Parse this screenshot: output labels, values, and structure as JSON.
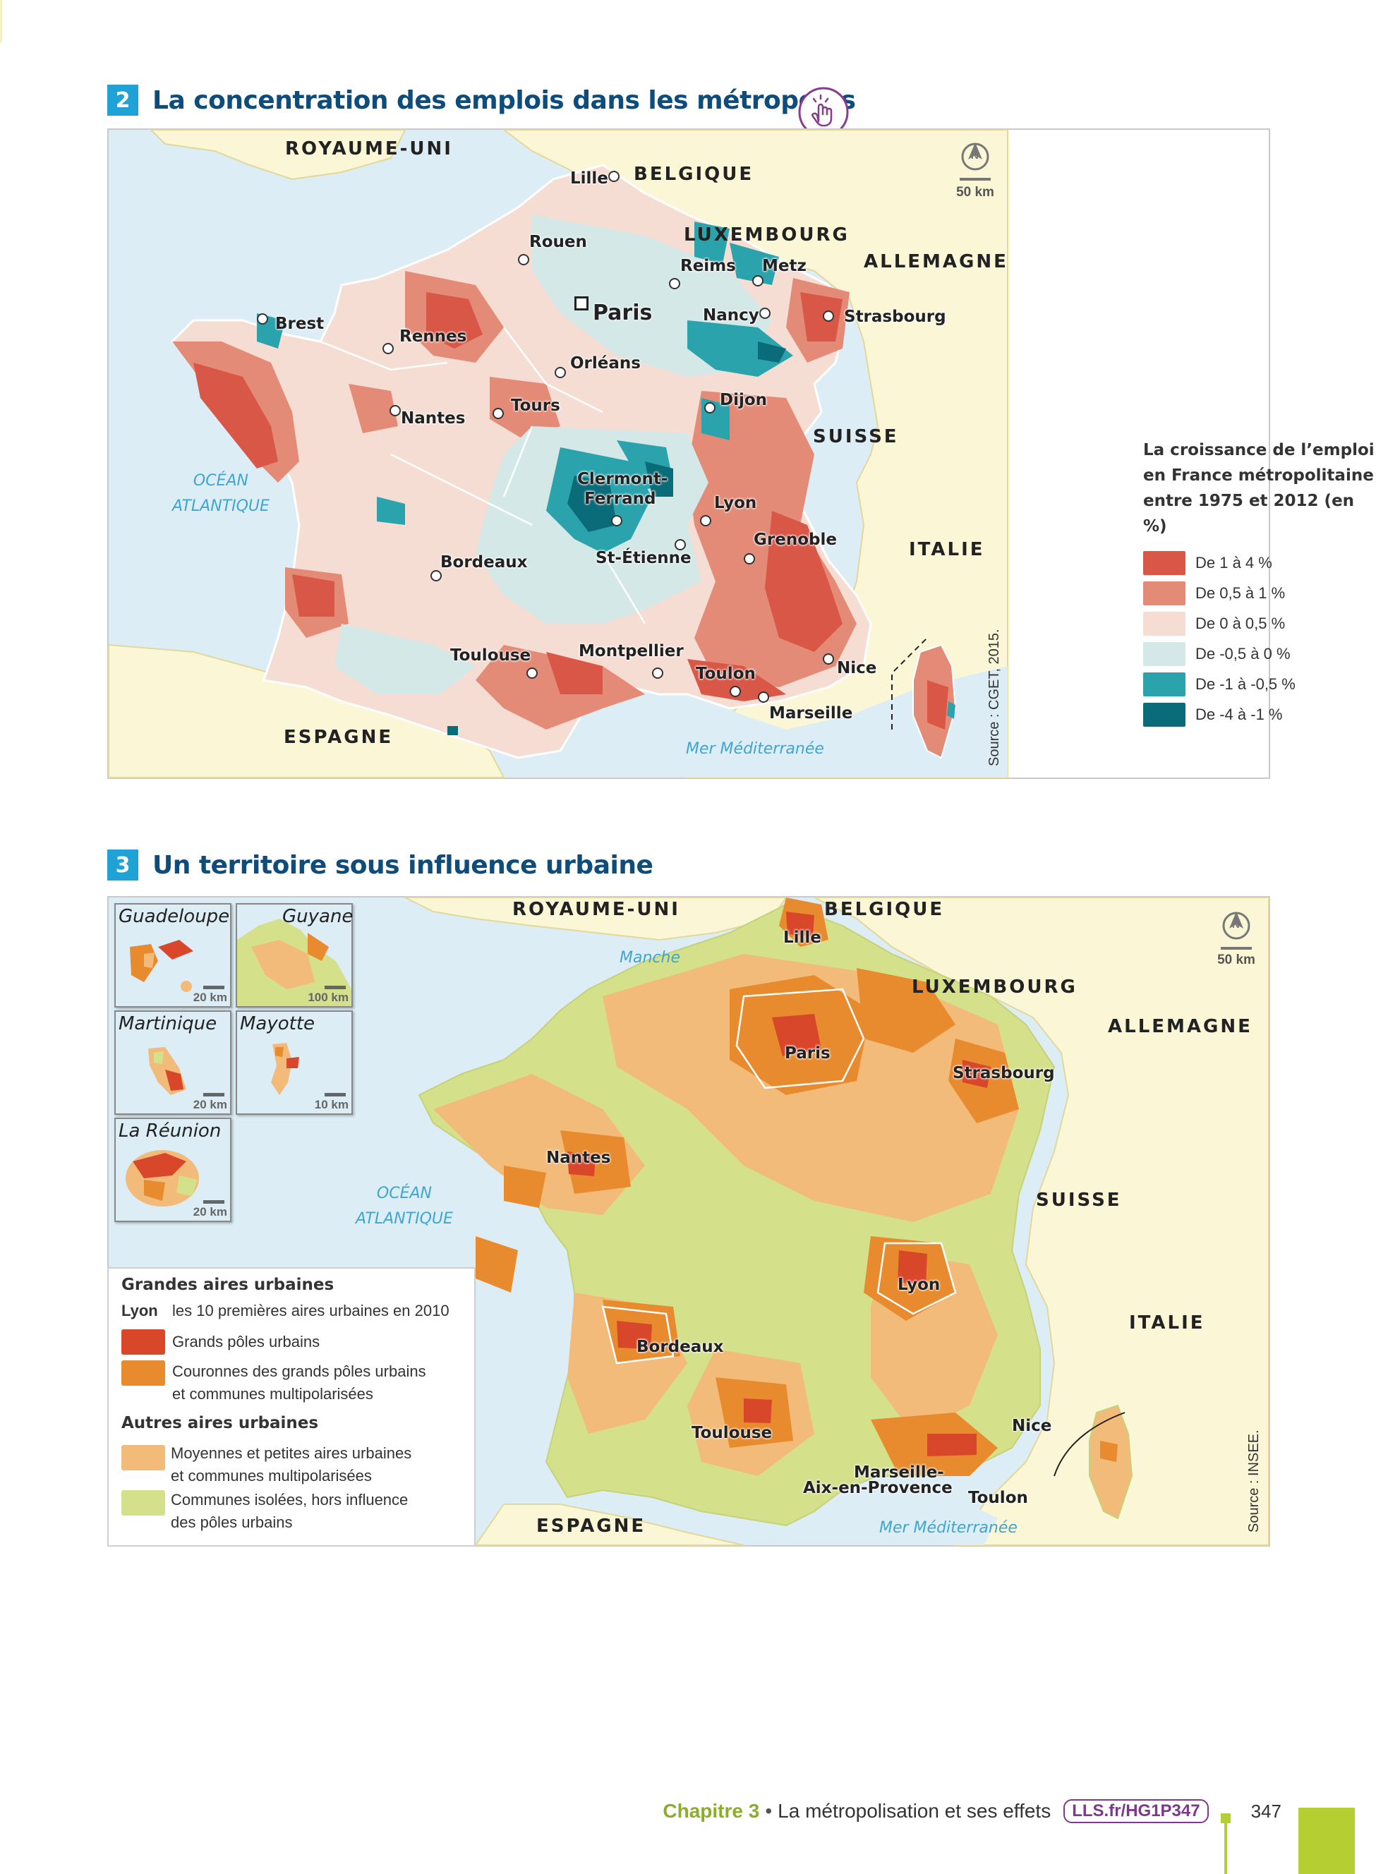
{
  "map1": {
    "number": "2",
    "title": "La concentration des emplois dans les métropoles",
    "countries": [
      "ROYAUME-UNI",
      "BELGIQUE",
      "LUXEMBOURG",
      "ALLEMAGNE",
      "SUISSE",
      "ITALIE",
      "ESPAGNE"
    ],
    "seas": {
      "ocean_line1": "OCÉAN",
      "ocean_line2": "ATLANTIQUE",
      "med": "Mer Méditerranée"
    },
    "cities": [
      "Lille",
      "Rouen",
      "Reims",
      "Metz",
      "Paris",
      "Nancy",
      "Strasbourg",
      "Brest",
      "Rennes",
      "Orléans",
      "Tours",
      "Nantes",
      "Dijon",
      "Clermont-",
      "Ferrand",
      "Lyon",
      "Grenoble",
      "Bordeaux",
      "St-Étienne",
      "Toulouse",
      "Montpellier",
      "Toulon",
      "Nice",
      "Marseille"
    ],
    "scale": "50 km",
    "north": "N",
    "source": "Source : CGET, 2015.",
    "legend": {
      "title_line1": "La croissance de l’emploi",
      "title_line2": "en France métropolitaine",
      "title_line3": "entre 1975 et 2012 (en %)",
      "items": [
        {
          "label": "De 1 à 4 %",
          "color": "#d95746"
        },
        {
          "label": "De 0,5 à 1 %",
          "color": "#e48b77"
        },
        {
          "label": "De 0 à 0,5 %",
          "color": "#f6ddd3"
        },
        {
          "label": "De -0,5 à 0 %",
          "color": "#d3e8e7"
        },
        {
          "label": "De -1 à -0,5 %",
          "color": "#2ba3ad"
        },
        {
          "label": "De -4 à -1 %",
          "color": "#0b6c79"
        }
      ]
    }
  },
  "map2": {
    "number": "3",
    "title": "Un territoire sous influence urbaine",
    "countries": [
      "ROYAUME-UNI",
      "BELGIQUE",
      "LUXEMBOURG",
      "ALLEMAGNE",
      "SUISSE",
      "ITALIE",
      "ESPAGNE"
    ],
    "seas": {
      "manche": "Manche",
      "ocean_line1": "OCÉAN",
      "ocean_line2": "ATLANTIQUE",
      "med": "Mer Méditerranée"
    },
    "cities": [
      "Lille",
      "Paris",
      "Strasbourg",
      "Nantes",
      "Lyon",
      "Bordeaux",
      "Toulouse",
      "Nice",
      "Marseille-",
      "Aix-en-Provence",
      "Toulon"
    ],
    "scale": "50 km",
    "north": "N",
    "source": "Source : INSEE.",
    "insets": [
      {
        "name": "Guadeloupe",
        "scale": "20 km"
      },
      {
        "name": "Guyane",
        "scale": "100 km"
      },
      {
        "name": "Martinique",
        "scale": "20 km"
      },
      {
        "name": "Mayotte",
        "scale": "10 km"
      },
      {
        "name": "La Réunion",
        "scale": "20 km"
      }
    ],
    "legend": {
      "heading1": "Grandes aires urbaines",
      "lyon_key": "Lyon",
      "lyon_text": "les 10 premières aires urbaines en 2010",
      "item1": "Grands pôles urbains",
      "item2_line1": "Couronnes des grands pôles urbains",
      "item2_line2": "et communes multipolarisées",
      "heading2": "Autres aires urbaines",
      "item3_line1": "Moyennes et petites aires urbaines",
      "item3_line2": "et communes multipolarisées",
      "item4_line1": "Communes isolées, hors influence",
      "item4_line2": "des pôles urbains",
      "colors": {
        "poles": "#d9472b",
        "couronnes": "#e88a2e",
        "moyennes": "#f2bb7a",
        "isolees": "#d4e08a"
      }
    }
  },
  "footer": {
    "chapter": "Chapitre 3",
    "separator": "•",
    "title": "La métropolisation et ses effets",
    "link": "LLS.fr/HG1P347",
    "page": "347"
  }
}
